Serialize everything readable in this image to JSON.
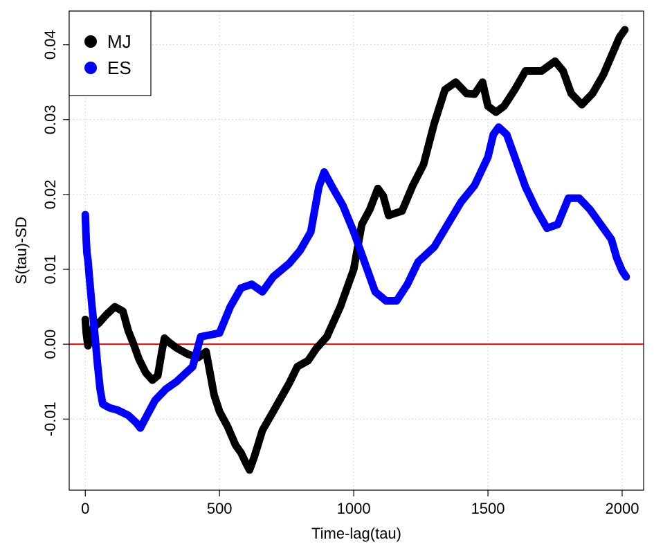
{
  "chart_data": {
    "type": "scatter",
    "title": "",
    "xlabel": "Time-lag(tau)",
    "ylabel": "S(tau)-SD",
    "xlim": [
      -60,
      2080
    ],
    "ylim": [
      -0.0195,
      0.0445
    ],
    "xticks": [
      0,
      500,
      1000,
      1500,
      2000
    ],
    "xtick_labels": [
      "0",
      "500",
      "1000",
      "1500",
      "2000"
    ],
    "yticks": [
      -0.01,
      0.0,
      0.01,
      0.02,
      0.03,
      0.04
    ],
    "ytick_labels": [
      "-0.01",
      "0.00",
      "0.01",
      "0.02",
      "0.03",
      "0.04"
    ],
    "grid": true,
    "legend_position": "top-left",
    "reference_line": {
      "y": 0,
      "color": "#ff0000"
    },
    "series": [
      {
        "name": "MJ",
        "color": "#000000",
        "points": [
          [
            0,
            0.0033
          ],
          [
            3,
            0.0017
          ],
          [
            6,
            0.0008
          ],
          [
            10,
            -0.0002
          ],
          [
            15,
            0.0003
          ],
          [
            20,
            0.0012
          ],
          [
            30,
            0.0022
          ],
          [
            50,
            0.0028
          ],
          [
            80,
            0.004
          ],
          [
            110,
            0.005
          ],
          [
            140,
            0.0044
          ],
          [
            160,
            0.0018
          ],
          [
            180,
            0.0
          ],
          [
            200,
            -0.002
          ],
          [
            225,
            -0.0038
          ],
          [
            250,
            -0.0048
          ],
          [
            270,
            -0.0042
          ],
          [
            285,
            -0.001
          ],
          [
            295,
            0.0008
          ],
          [
            310,
            0.0003
          ],
          [
            340,
            -0.0005
          ],
          [
            380,
            -0.0013
          ],
          [
            420,
            -0.0018
          ],
          [
            450,
            -0.001
          ],
          [
            480,
            -0.0068
          ],
          [
            500,
            -0.009
          ],
          [
            530,
            -0.011
          ],
          [
            560,
            -0.0135
          ],
          [
            580,
            -0.0145
          ],
          [
            600,
            -0.016
          ],
          [
            612,
            -0.0168
          ],
          [
            630,
            -0.015
          ],
          [
            660,
            -0.0115
          ],
          [
            700,
            -0.009
          ],
          [
            760,
            -0.0052
          ],
          [
            790,
            -0.003
          ],
          [
            830,
            -0.0022
          ],
          [
            860,
            -0.0006
          ],
          [
            900,
            0.001
          ],
          [
            950,
            0.005
          ],
          [
            1000,
            0.01
          ],
          [
            1030,
            0.016
          ],
          [
            1060,
            0.018
          ],
          [
            1090,
            0.0208
          ],
          [
            1110,
            0.0198
          ],
          [
            1130,
            0.0172
          ],
          [
            1180,
            0.0178
          ],
          [
            1220,
            0.0212
          ],
          [
            1260,
            0.024
          ],
          [
            1300,
            0.0295
          ],
          [
            1340,
            0.034
          ],
          [
            1380,
            0.035
          ],
          [
            1420,
            0.0335
          ],
          [
            1450,
            0.0334
          ],
          [
            1480,
            0.035
          ],
          [
            1500,
            0.0318
          ],
          [
            1530,
            0.031
          ],
          [
            1560,
            0.0318
          ],
          [
            1600,
            0.034
          ],
          [
            1640,
            0.0365
          ],
          [
            1700,
            0.0365
          ],
          [
            1750,
            0.0378
          ],
          [
            1780,
            0.0365
          ],
          [
            1810,
            0.0335
          ],
          [
            1850,
            0.032
          ],
          [
            1890,
            0.0335
          ],
          [
            1930,
            0.036
          ],
          [
            1960,
            0.0385
          ],
          [
            1990,
            0.041
          ],
          [
            2010,
            0.042
          ]
        ]
      },
      {
        "name": "ES",
        "color": "#0000ff",
        "points": [
          [
            0,
            0.0173
          ],
          [
            3,
            0.0142
          ],
          [
            6,
            0.0122
          ],
          [
            10,
            0.0112
          ],
          [
            15,
            0.009
          ],
          [
            25,
            0.005
          ],
          [
            35,
            0.0015
          ],
          [
            45,
            -0.0025
          ],
          [
            55,
            -0.006
          ],
          [
            65,
            -0.008
          ],
          [
            90,
            -0.0085
          ],
          [
            120,
            -0.0088
          ],
          [
            160,
            -0.0095
          ],
          [
            190,
            -0.0105
          ],
          [
            205,
            -0.0112
          ],
          [
            230,
            -0.0095
          ],
          [
            260,
            -0.0075
          ],
          [
            300,
            -0.006
          ],
          [
            340,
            -0.005
          ],
          [
            400,
            -0.003
          ],
          [
            430,
            0.001
          ],
          [
            460,
            0.0012
          ],
          [
            500,
            0.0015
          ],
          [
            540,
            0.005
          ],
          [
            580,
            0.0075
          ],
          [
            620,
            0.008
          ],
          [
            660,
            0.007
          ],
          [
            700,
            0.009
          ],
          [
            760,
            0.0108
          ],
          [
            800,
            0.0125
          ],
          [
            840,
            0.015
          ],
          [
            870,
            0.021
          ],
          [
            890,
            0.023
          ],
          [
            920,
            0.021
          ],
          [
            960,
            0.0185
          ],
          [
            1000,
            0.015
          ],
          [
            1040,
            0.011
          ],
          [
            1080,
            0.007
          ],
          [
            1120,
            0.0058
          ],
          [
            1160,
            0.0058
          ],
          [
            1200,
            0.008
          ],
          [
            1240,
            0.011
          ],
          [
            1300,
            0.013
          ],
          [
            1350,
            0.016
          ],
          [
            1400,
            0.019
          ],
          [
            1450,
            0.0212
          ],
          [
            1500,
            0.025
          ],
          [
            1520,
            0.028
          ],
          [
            1540,
            0.029
          ],
          [
            1570,
            0.028
          ],
          [
            1600,
            0.025
          ],
          [
            1640,
            0.021
          ],
          [
            1680,
            0.018
          ],
          [
            1720,
            0.0155
          ],
          [
            1760,
            0.016
          ],
          [
            1800,
            0.0195
          ],
          [
            1840,
            0.0195
          ],
          [
            1880,
            0.018
          ],
          [
            1920,
            0.016
          ],
          [
            1960,
            0.014
          ],
          [
            1980,
            0.0115
          ],
          [
            2000,
            0.0098
          ],
          [
            2015,
            0.009
          ]
        ]
      }
    ]
  }
}
